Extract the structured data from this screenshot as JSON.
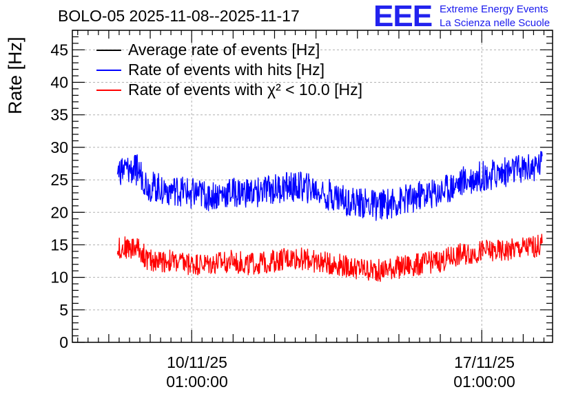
{
  "title": "BOLO-05 2025-11-08--2025-11-17",
  "logo": {
    "mark": "EEE",
    "line1": "Extreme Energy Events",
    "line2": "La Scienza nelle Scuole"
  },
  "colors": {
    "average": "#000000",
    "hits": "#0000ff",
    "chi2": "#ff0000",
    "logo": "#2222ee"
  },
  "chart_data": {
    "type": "line",
    "title": "BOLO-05 2025-11-08--2025-11-17",
    "ylabel": "Rate [Hz]",
    "xlabel": "",
    "ylim": [
      0,
      48
    ],
    "yticks": [
      "0",
      "5",
      "10",
      "15",
      "20",
      "25",
      "30",
      "35",
      "40",
      "45"
    ],
    "xticks": [
      {
        "date": "10/11/25",
        "time": "01:00:00"
      },
      {
        "date": "17/11/25",
        "time": "01:00:00"
      }
    ],
    "grid": true,
    "legend_position": "top-left",
    "x_unit": "days",
    "xlim": [
      "2025-11-07T03:54",
      "2025-11-18T18:00"
    ],
    "series": [
      {
        "name": "Average rate of events [Hz]",
        "color": "#000000",
        "x": [],
        "values": []
      },
      {
        "name": "Rate of events with hits [Hz]",
        "color": "#0000ff",
        "x": [
          "2025-11-08T06:00",
          "2025-11-08T18:00",
          "2025-11-09T00:00",
          "2025-11-09T12:00",
          "2025-11-10T00:00",
          "2025-11-10T12:00",
          "2025-11-11T00:00",
          "2025-11-11T12:00",
          "2025-11-12T00:00",
          "2025-11-12T12:00",
          "2025-11-13T00:00",
          "2025-11-13T12:00",
          "2025-11-14T00:00",
          "2025-11-14T12:00",
          "2025-11-15T00:00",
          "2025-11-15T12:00",
          "2025-11-16T00:00",
          "2025-11-16T12:00",
          "2025-11-17T00:00",
          "2025-11-17T12:00",
          "2025-11-18T00:00",
          "2025-11-18T12:00"
        ],
        "values": [
          26.5,
          26.5,
          24,
          23.5,
          23,
          22.5,
          23,
          23,
          23.5,
          24,
          23.5,
          22.5,
          21.5,
          21,
          21.5,
          22.5,
          23,
          24.5,
          25.5,
          26,
          26.5,
          27.5
        ]
      },
      {
        "name": "Rate of events with χ² < 10.0 [Hz]",
        "color": "#ff0000",
        "x": [
          "2025-11-08T06:00",
          "2025-11-08T18:00",
          "2025-11-09T00:00",
          "2025-11-09T12:00",
          "2025-11-10T00:00",
          "2025-11-10T12:00",
          "2025-11-11T00:00",
          "2025-11-11T12:00",
          "2025-11-12T00:00",
          "2025-11-12T12:00",
          "2025-11-13T00:00",
          "2025-11-13T12:00",
          "2025-11-14T00:00",
          "2025-11-14T12:00",
          "2025-11-15T00:00",
          "2025-11-15T12:00",
          "2025-11-16T00:00",
          "2025-11-16T12:00",
          "2025-11-17T00:00",
          "2025-11-17T12:00",
          "2025-11-18T00:00",
          "2025-11-18T12:00"
        ],
        "values": [
          14.5,
          14.5,
          12.5,
          12.5,
          12,
          12,
          12.5,
          12,
          12.5,
          13,
          12.5,
          12,
          11.5,
          11,
          11.5,
          12,
          12.5,
          13.5,
          14,
          14,
          14.5,
          15
        ]
      }
    ]
  }
}
